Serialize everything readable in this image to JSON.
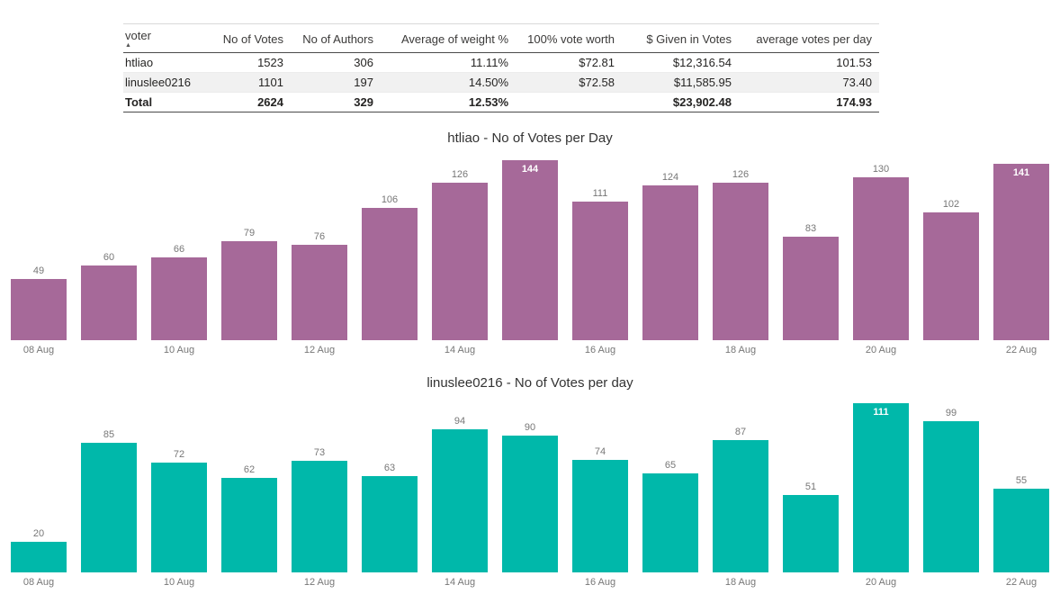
{
  "table": {
    "columns": [
      "voter",
      "No of Votes",
      "No of Authors",
      "Average of weight %",
      "100% vote worth",
      "$ Given in Votes",
      "average votes per day"
    ],
    "sort_column": "voter",
    "sort_icon": "▲",
    "rows": [
      {
        "cells": [
          "htliao",
          "1523",
          "306",
          "11.11%",
          "$72.81",
          "$12,316.54",
          "101.53"
        ]
      },
      {
        "cells": [
          "linuslee0216",
          "1101",
          "197",
          "14.50%",
          "$72.58",
          "$11,585.95",
          "73.40"
        ]
      }
    ],
    "total": {
      "cells": [
        "Total",
        "2624",
        "329",
        "12.53%",
        "",
        "$23,902.48",
        "174.93"
      ]
    }
  },
  "chart_data": [
    {
      "type": "bar",
      "title": "htliao - No of Votes per Day",
      "categories": [
        "08 Aug",
        "09 Aug",
        "10 Aug",
        "11 Aug",
        "12 Aug",
        "13 Aug",
        "14 Aug",
        "15 Aug",
        "16 Aug",
        "17 Aug",
        "18 Aug",
        "19 Aug",
        "20 Aug",
        "21 Aug",
        "22 Aug"
      ],
      "values": [
        49,
        60,
        66,
        79,
        76,
        106,
        126,
        144,
        111,
        124,
        126,
        83,
        130,
        102,
        141
      ],
      "x_tick_labels": [
        "08 Aug",
        "10 Aug",
        "12 Aug",
        "14 Aug",
        "16 Aug",
        "18 Aug",
        "20 Aug",
        "22 Aug"
      ],
      "tick_every": 2,
      "bar_color": "#a66999",
      "value_label_color": "#777777",
      "inside_label_color": "#ffffff",
      "ylim": [
        0,
        144
      ],
      "grid": false,
      "legend": "none",
      "xlabel": "",
      "ylabel": ""
    },
    {
      "type": "bar",
      "title": "linuslee0216 - No of Votes per day",
      "categories": [
        "08 Aug",
        "09 Aug",
        "10 Aug",
        "11 Aug",
        "12 Aug",
        "13 Aug",
        "14 Aug",
        "15 Aug",
        "16 Aug",
        "17 Aug",
        "18 Aug",
        "19 Aug",
        "20 Aug",
        "21 Aug",
        "22 Aug"
      ],
      "values": [
        20,
        85,
        72,
        62,
        73,
        63,
        94,
        90,
        74,
        65,
        87,
        51,
        111,
        99,
        55
      ],
      "x_tick_labels": [
        "08 Aug",
        "10 Aug",
        "12 Aug",
        "14 Aug",
        "16 Aug",
        "18 Aug",
        "20 Aug",
        "22 Aug"
      ],
      "tick_every": 2,
      "bar_color": "#00b8aa",
      "value_label_color": "#777777",
      "inside_label_color": "#ffffff",
      "ylim": [
        0,
        111
      ],
      "grid": false,
      "legend": "none",
      "xlabel": "",
      "ylabel": ""
    }
  ]
}
